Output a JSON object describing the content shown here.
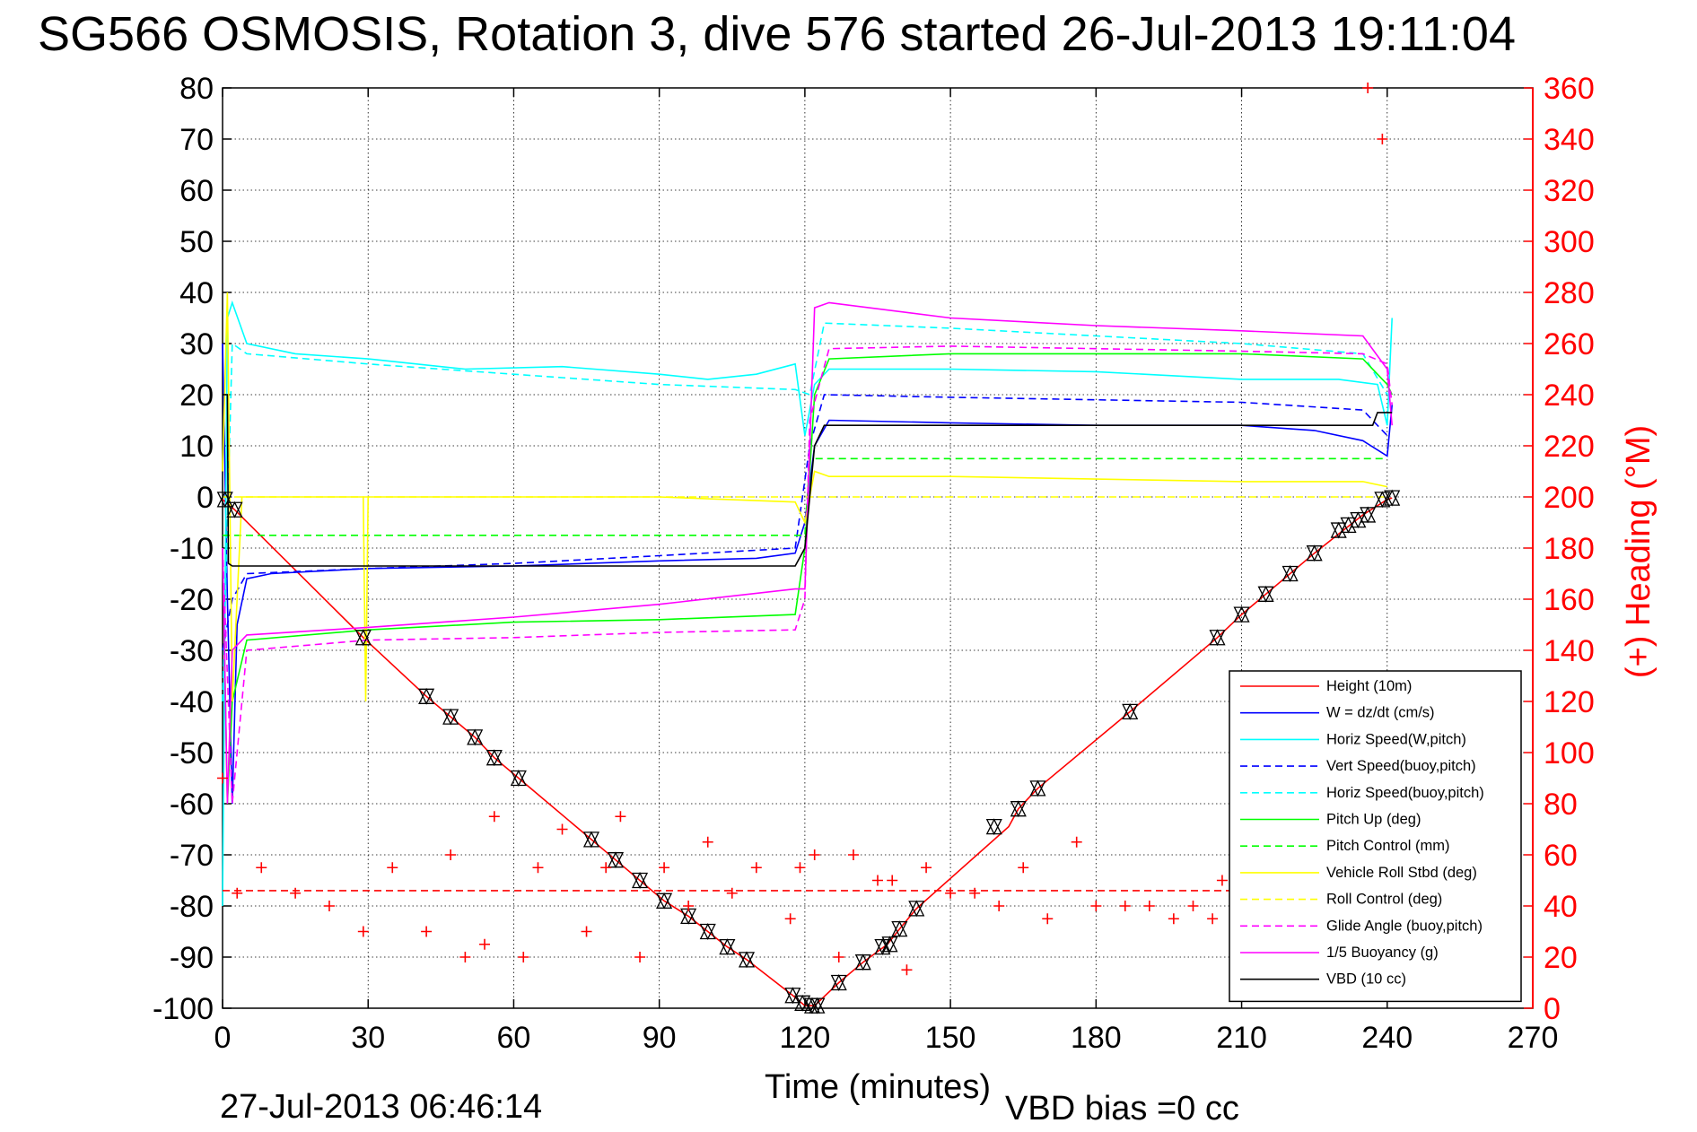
{
  "title": "SG566 OSMOSIS, Rotation 3, dive 576 started 26-Jul-2013 19:11:04",
  "footer": {
    "end_time": "27-Jul-2013 06:46:14",
    "vbd_bias": "VBD bias =0 cc"
  },
  "colors": {
    "red": "#ff0000",
    "blue": "#0000ff",
    "cyan": "#00ffff",
    "green": "#00ff00",
    "yellow": "#ffff00",
    "magenta": "#ff00ff",
    "black": "#000000"
  },
  "chart_data": {
    "type": "line",
    "xlabel": "Time (minutes)",
    "ylabel": "",
    "y2label": "(+) Heading (°M)",
    "xlim": [
      0,
      270
    ],
    "ylim": [
      -100,
      80
    ],
    "y2lim": [
      0,
      360
    ],
    "xticks": [
      "0",
      "30",
      "60",
      "90",
      "120",
      "150",
      "180",
      "210",
      "240",
      "270"
    ],
    "yticks": [
      "80",
      "70",
      "60",
      "50",
      "40",
      "30",
      "20",
      "10",
      "0",
      "-10",
      "-20",
      "-30",
      "-40",
      "-50",
      "-60",
      "-70",
      "-80",
      "-90",
      "-100"
    ],
    "y2ticks": [
      "360",
      "340",
      "320",
      "300",
      "280",
      "260",
      "240",
      "220",
      "200",
      "180",
      "160",
      "140",
      "120",
      "100",
      "80",
      "60",
      "40",
      "20",
      "0"
    ],
    "grid": true,
    "legend_position": "bottom-right",
    "series": [
      {
        "name": "Height (10m)",
        "color": "#ff0000",
        "style": "solid",
        "x": [
          0,
          2.5,
          29,
          42,
          47,
          52,
          56,
          61,
          76,
          81,
          86,
          91,
          96,
          100,
          104,
          108,
          117.5,
          120,
          122,
          127,
          132,
          137,
          139.5,
          143,
          162,
          164,
          168,
          187,
          205,
          210,
          215,
          220,
          225,
          231,
          233,
          235,
          240,
          241
        ],
        "y": [
          -0.5,
          -2.5,
          -27.5,
          -39,
          -43,
          -47,
          -51,
          -55,
          -67,
          -71,
          -75,
          -79,
          -82,
          -85,
          -88,
          -90.5,
          -97.5,
          -99.5,
          -99.5,
          -95,
          -91,
          -87.5,
          -84.5,
          -80.5,
          -64.5,
          -61,
          -57,
          -42,
          -27.5,
          -23,
          -19,
          -15,
          -11,
          -6.5,
          -5,
          -3.5,
          -0.5,
          -0.2
        ]
      },
      {
        "name": "W = dz/dt (cm/s)",
        "color": "#0000ff",
        "style": "solid",
        "x": [
          0,
          1,
          2,
          3,
          5,
          10,
          30,
          60,
          90,
          110,
          118,
          120,
          122,
          125,
          150,
          180,
          210,
          225,
          235,
          240,
          241
        ],
        "y": [
          30,
          -20,
          -60,
          -25,
          -16,
          -15,
          -14,
          -13.5,
          -12.5,
          -12,
          -11,
          -5,
          10,
          15,
          14.5,
          14,
          14,
          13,
          11,
          8,
          18
        ]
      },
      {
        "name": "Horiz Speed(W,pitch)",
        "color": "#00ffff",
        "style": "solid",
        "x": [
          0,
          1,
          2,
          5,
          15,
          30,
          50,
          70,
          90,
          100,
          110,
          118,
          120,
          122,
          125,
          150,
          180,
          210,
          230,
          238,
          240,
          241
        ],
        "y": [
          -80,
          35,
          38,
          30,
          28,
          27,
          25,
          25.5,
          24,
          23,
          24,
          26,
          12,
          22,
          25,
          25,
          24.5,
          23,
          23,
          22,
          14,
          35
        ]
      },
      {
        "name": "Vert Speed(buoy,pitch)",
        "color": "#0000ff",
        "style": "dashed",
        "x": [
          0,
          2,
          5,
          30,
          60,
          90,
          118,
          121,
          124,
          150,
          180,
          210,
          235,
          240
        ],
        "y": [
          -30,
          -20,
          -15,
          -14,
          -13,
          -11.5,
          -10,
          10,
          20,
          19.5,
          19,
          18.5,
          17,
          12
        ]
      },
      {
        "name": "Horiz Speed(buoy,pitch)",
        "color": "#00ffff",
        "style": "dashed",
        "x": [
          0,
          2,
          5,
          30,
          60,
          90,
          118,
          121,
          124,
          150,
          180,
          210,
          235,
          240
        ],
        "y": [
          -40,
          30,
          28,
          26,
          24,
          22,
          21,
          20,
          34,
          33,
          31.5,
          30,
          28,
          20
        ]
      },
      {
        "name": "Pitch Up (deg)",
        "color": "#00ff00",
        "style": "solid",
        "x": [
          0,
          1,
          2,
          5,
          30,
          60,
          90,
          118,
          120,
          122,
          125,
          150,
          180,
          210,
          235,
          240,
          241
        ],
        "y": [
          -10,
          -60,
          -40,
          -28,
          -26,
          -24.5,
          -24,
          -23,
          -10,
          20,
          27,
          28,
          28,
          28,
          27,
          22,
          20
        ]
      },
      {
        "name": "Pitch Control (mm)",
        "color": "#00ff00",
        "style": "dashed",
        "x": [
          0,
          2,
          30,
          60,
          90,
          118,
          120,
          121,
          150,
          180,
          210,
          240
        ],
        "y": [
          -7.5,
          -7.5,
          -7.5,
          -7.5,
          -7.5,
          -7.5,
          -7.5,
          7.5,
          7.5,
          7.5,
          7.5,
          7.5
        ]
      },
      {
        "name": "Vehicle Roll Stbd (deg)",
        "color": "#ffff00",
        "style": "solid",
        "x": [
          0,
          1,
          2,
          4,
          29,
          29.5,
          30,
          60,
          90,
          118,
          120,
          122,
          125,
          150,
          180,
          210,
          235,
          240
        ],
        "y": [
          5,
          40,
          -40,
          0,
          0,
          -40,
          0,
          0,
          0,
          -1,
          -5,
          5,
          4,
          4,
          3.5,
          3,
          3,
          2
        ]
      },
      {
        "name": "Roll Control (deg)",
        "color": "#ffff00",
        "style": "dashed",
        "x": [
          0,
          2,
          30,
          60,
          90,
          118,
          120,
          121,
          150,
          180,
          210,
          240
        ],
        "y": [
          0,
          0,
          0,
          0,
          0,
          0,
          0,
          0,
          0,
          0,
          0,
          0
        ]
      },
      {
        "name": "Glide Angle (buoy,pitch)",
        "color": "#ff00ff",
        "style": "dashed",
        "x": [
          0,
          2,
          5,
          30,
          60,
          90,
          118,
          120,
          121,
          125,
          150,
          180,
          210,
          235,
          240,
          241
        ],
        "y": [
          -10,
          -60,
          -30,
          -28,
          -27.5,
          -26.5,
          -26,
          -20,
          15,
          29,
          29.5,
          29,
          28.5,
          28,
          26,
          18
        ]
      },
      {
        "name": "1/5 Buoyancy (g)",
        "color": "#ff00ff",
        "style": "solid",
        "x": [
          0,
          1,
          2,
          5,
          30,
          60,
          90,
          118,
          120,
          122,
          125,
          150,
          180,
          210,
          235,
          240,
          241
        ],
        "y": [
          -10,
          -60,
          -30,
          -27,
          -25.5,
          -23.5,
          -21,
          -18,
          -18,
          37,
          38,
          35,
          33.5,
          32.5,
          31.5,
          25,
          14
        ]
      },
      {
        "name": "VBD (10 cc)",
        "color": "#000000",
        "style": "solid",
        "x": [
          0,
          1,
          1.2,
          2,
          118,
          120,
          122,
          124,
          150,
          200,
          237,
          238,
          241
        ],
        "y": [
          20,
          20,
          -13,
          -13.5,
          -13.5,
          -10,
          10,
          14,
          14,
          14,
          14,
          16.5,
          16.5
        ]
      },
      {
        "name": "",
        "color": "#000000",
        "style": "markers",
        "x": [
          0.5,
          2.5,
          29,
          42,
          47,
          52,
          56,
          61,
          76,
          81,
          86,
          91,
          96,
          100,
          104,
          108,
          117.5,
          119.5,
          121.5,
          122.5,
          127,
          132,
          136,
          137.5,
          139.5,
          143,
          159,
          164,
          168,
          187,
          205,
          210,
          215,
          220,
          225,
          230,
          232,
          234,
          236,
          239,
          241
        ],
        "y": [
          -0.5,
          -2.5,
          -27.5,
          -39,
          -43,
          -47,
          -51,
          -55,
          -67,
          -71,
          -75,
          -79,
          -82,
          -85,
          -88,
          -90.5,
          -97.5,
          -99,
          -99.5,
          -99.5,
          -95,
          -91,
          -88,
          -87.5,
          -84.5,
          -80.5,
          -64.5,
          -61,
          -57,
          -42,
          -27.5,
          -23,
          -19,
          -15,
          -11,
          -6.5,
          -5.5,
          -4.5,
          -3.5,
          -0.5,
          -0.2
        ]
      },
      {
        "name": "",
        "color": "#ff0000",
        "style": "plus",
        "axis": "right",
        "x": [
          0,
          3,
          8,
          15,
          22,
          29,
          35,
          42,
          47,
          50,
          54,
          56,
          62,
          65,
          70,
          75,
          79,
          82,
          86,
          91,
          96,
          100,
          105,
          110,
          117,
          119,
          122,
          127,
          130,
          135,
          138,
          141,
          145,
          150,
          155,
          160,
          165,
          170,
          176,
          180,
          186,
          191,
          196,
          200,
          204,
          206,
          210,
          215,
          220,
          225,
          230,
          236,
          239
        ],
        "y": [
          90,
          45,
          55,
          45,
          40,
          30,
          55,
          30,
          60,
          20,
          25,
          75,
          20,
          55,
          70,
          30,
          55,
          75,
          20,
          55,
          40,
          65,
          45,
          55,
          35,
          55,
          60,
          20,
          60,
          50,
          50,
          15,
          55,
          45,
          45,
          40,
          55,
          35,
          65,
          40,
          40,
          40,
          35,
          40,
          35,
          50,
          45,
          40,
          45,
          40,
          45,
          360,
          340
        ]
      },
      {
        "name": "",
        "color": "#ff0000",
        "style": "dashed",
        "axis": "right",
        "x": [
          0,
          240
        ],
        "y": [
          46,
          46
        ]
      }
    ]
  }
}
